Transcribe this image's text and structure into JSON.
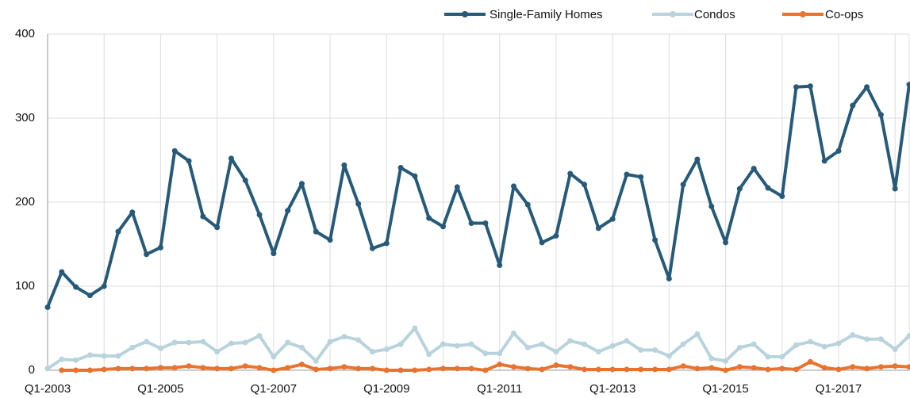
{
  "chart_data": {
    "type": "line",
    "categories": [
      "Q1-2003",
      null,
      null,
      null,
      null,
      null,
      null,
      null,
      "Q1-2005",
      null,
      null,
      null,
      null,
      null,
      null,
      null,
      "Q1-2007",
      null,
      null,
      null,
      null,
      null,
      null,
      null,
      "Q1-2009",
      null,
      null,
      null,
      null,
      null,
      null,
      null,
      "Q1-2011",
      null,
      null,
      null,
      null,
      null,
      null,
      null,
      "Q1-2013",
      null,
      null,
      null,
      null,
      null,
      null,
      null,
      "Q1-2015",
      null,
      null,
      null,
      null,
      null,
      null,
      null,
      "Q1-2017",
      null,
      null,
      null,
      null,
      null
    ],
    "series": [
      {
        "name": "Single-Family Homes",
        "color": "#265a78",
        "values": [
          75,
          117,
          99,
          89,
          100,
          165,
          188,
          138,
          146,
          261,
          249,
          183,
          170,
          252,
          226,
          185,
          139,
          190,
          222,
          165,
          155,
          244,
          198,
          145,
          151,
          241,
          231,
          181,
          171,
          218,
          175,
          175,
          125,
          219,
          197,
          152,
          160,
          234,
          221,
          169,
          180,
          233,
          230,
          155,
          109,
          221,
          251,
          195,
          152,
          216,
          240,
          217,
          207,
          337,
          338,
          249,
          261,
          315,
          337,
          304,
          216,
          340
        ]
      },
      {
        "name": "Condos",
        "color": "#b9d3dc",
        "values": [
          2,
          13,
          12,
          18,
          17,
          17,
          27,
          34,
          26,
          33,
          33,
          34,
          22,
          32,
          33,
          41,
          16,
          33,
          27,
          11,
          34,
          40,
          36,
          22,
          25,
          31,
          50,
          19,
          31,
          29,
          31,
          20,
          20,
          44,
          27,
          31,
          22,
          35,
          31,
          22,
          29,
          35,
          24,
          24,
          17,
          31,
          43,
          14,
          11,
          27,
          31,
          16,
          16,
          30,
          34,
          28,
          32,
          42,
          37,
          37,
          25,
          41
        ]
      },
      {
        "name": "Co-ops",
        "color": "#e8732f",
        "values": [
          null,
          0,
          0,
          0,
          1,
          2,
          2,
          2,
          3,
          3,
          5,
          3,
          2,
          2,
          5,
          3,
          0,
          3,
          7,
          1,
          2,
          4,
          2,
          2,
          0,
          0,
          0,
          1,
          2,
          2,
          2,
          0,
          7,
          4,
          2,
          1,
          6,
          4,
          1,
          1,
          1,
          1,
          1,
          1,
          1,
          5,
          2,
          3,
          0,
          4,
          3,
          1,
          2,
          1,
          10,
          3,
          1,
          4,
          2,
          4,
          5,
          4
        ]
      }
    ],
    "ylim": [
      0,
      400
    ],
    "yticks": [
      0,
      100,
      200,
      300,
      400
    ],
    "grid": true,
    "legend": "top"
  }
}
